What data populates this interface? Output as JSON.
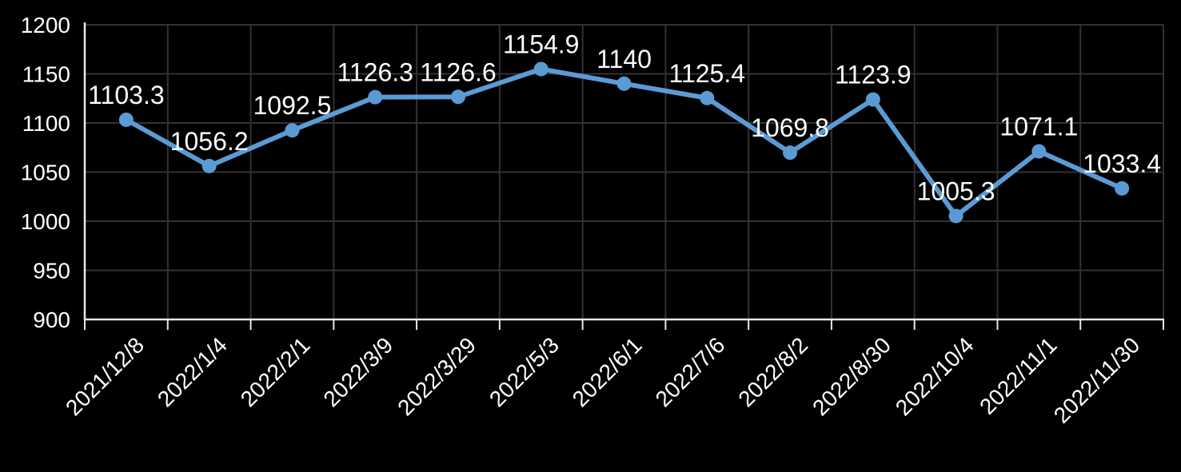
{
  "chart_data": {
    "type": "line",
    "title": "",
    "xlabel": "",
    "ylabel": "",
    "categories": [
      "2021/12/8",
      "2022/1/4",
      "2022/2/1",
      "2022/3/9",
      "2022/3/29",
      "2022/5/3",
      "2022/6/1",
      "2022/7/6",
      "2022/8/2",
      "2022/8/30",
      "2022/10/4",
      "2022/11/1",
      "2022/11/30"
    ],
    "series": [
      {
        "name": "series-1",
        "values": [
          1103.3,
          1056.2,
          1092.5,
          1126.3,
          1126.6,
          1154.9,
          1140,
          1125.4,
          1069.8,
          1123.9,
          1005.3,
          1071.1,
          1033.4
        ],
        "data_labels": [
          "1103.3",
          "1056.2",
          "1092.5",
          "1126.3",
          "1126.6",
          "1154.9",
          "1140",
          "1125.4",
          "1069.8",
          "1123.9",
          "1005.3",
          "1071.1",
          "1033.4"
        ]
      }
    ],
    "ylim": [
      900,
      1200
    ],
    "yticks": [
      900,
      950,
      1000,
      1050,
      1100,
      1150,
      1200
    ],
    "grid": true,
    "legend_position": "none",
    "marker": "circle",
    "x_label_rotation_deg": 45
  },
  "style": {
    "background_color": "#000000",
    "line_color": "#5B9BD5",
    "marker_color": "#5B9BD5",
    "text_color": "#FFFFFF",
    "grid_color": "#323232",
    "axis_color": "#E8E8E8"
  }
}
